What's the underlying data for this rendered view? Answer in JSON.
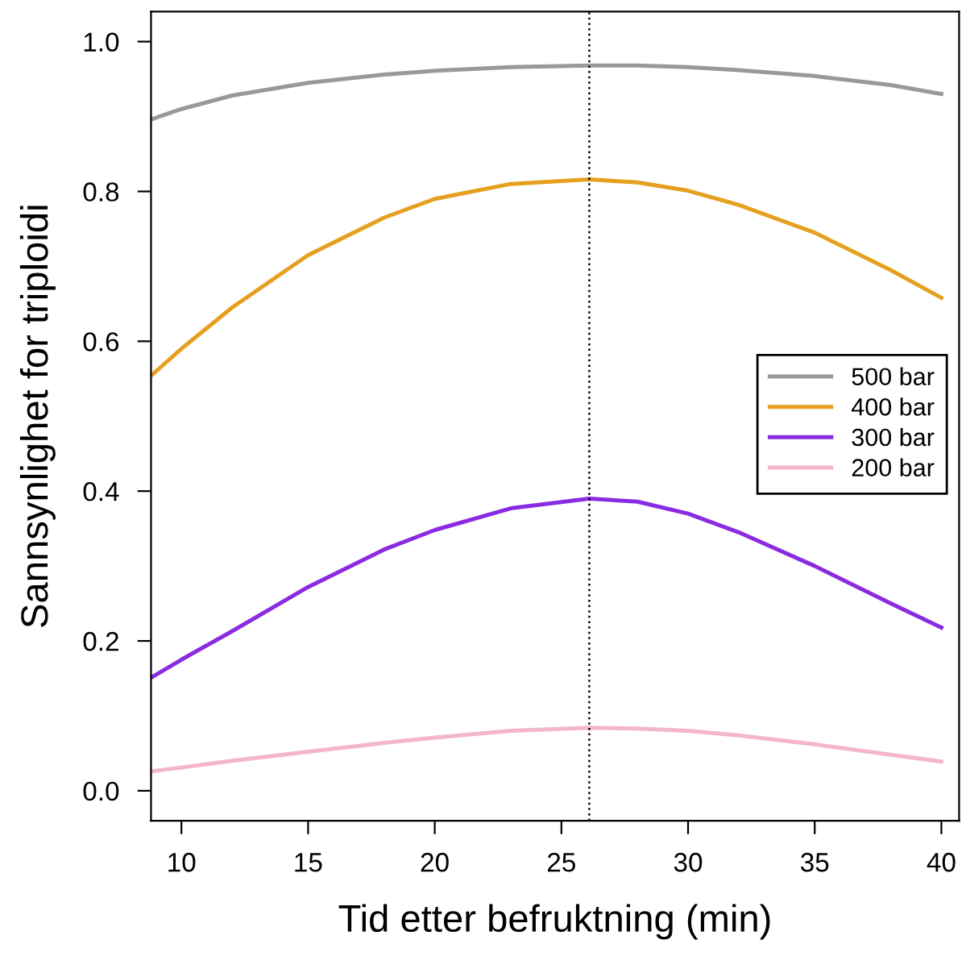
{
  "chart_data": {
    "type": "line",
    "xlabel": "Tid etter befruktning (min)",
    "ylabel": "Sannsynlighet for triploidi",
    "xlim": [
      8.8,
      40.7
    ],
    "xticks": [
      10,
      15,
      20,
      25,
      30,
      35,
      40
    ],
    "ylim": [
      -0.04,
      1.04
    ],
    "yticks": [
      {
        "value": 0,
        "label": "0.0"
      },
      0.2,
      0.4,
      0.6,
      0.8,
      {
        "value": 1,
        "label": "1.0"
      }
    ],
    "grid": false,
    "legend": "right",
    "marker": "none",
    "line_style": "solid",
    "ref_lines": [
      {
        "axis": "x",
        "value": 26.1,
        "label": null,
        "color": "#000000",
        "line_style": "dotted"
      }
    ],
    "series": [
      {
        "name": "500 bar",
        "color": "#999999",
        "x": [
          8.8,
          10,
          12,
          15,
          18,
          20,
          23,
          26.1,
          28,
          30,
          32,
          35,
          38,
          40
        ],
        "values": [
          0.896,
          0.91,
          0.928,
          0.945,
          0.956,
          0.961,
          0.966,
          0.968,
          0.968,
          0.966,
          0.962,
          0.954,
          0.942,
          0.93
        ]
      },
      {
        "name": "400 bar",
        "color": "#e6a020",
        "x": [
          8.8,
          10,
          12,
          15,
          18,
          20,
          23,
          26.1,
          28,
          30,
          32,
          35,
          38,
          40
        ],
        "values": [
          0.554,
          0.59,
          0.645,
          0.715,
          0.765,
          0.79,
          0.81,
          0.816,
          0.812,
          0.801,
          0.782,
          0.745,
          0.695,
          0.658
        ]
      },
      {
        "name": "300 bar",
        "color": "#8a2be2",
        "x": [
          8.8,
          10,
          12,
          15,
          18,
          20,
          23,
          26.1,
          28,
          30,
          32,
          35,
          38,
          40
        ],
        "values": [
          0.151,
          0.175,
          0.213,
          0.272,
          0.322,
          0.348,
          0.377,
          0.39,
          0.386,
          0.37,
          0.345,
          0.3,
          0.25,
          0.218
        ]
      },
      {
        "name": "200 bar",
        "color": "#f4b6c9",
        "x": [
          8.8,
          10,
          12,
          15,
          18,
          20,
          23,
          26.1,
          28,
          30,
          32,
          35,
          38,
          40
        ],
        "values": [
          0.026,
          0.031,
          0.04,
          0.052,
          0.064,
          0.071,
          0.08,
          0.084,
          0.083,
          0.08,
          0.074,
          0.062,
          0.048,
          0.039
        ]
      }
    ]
  }
}
